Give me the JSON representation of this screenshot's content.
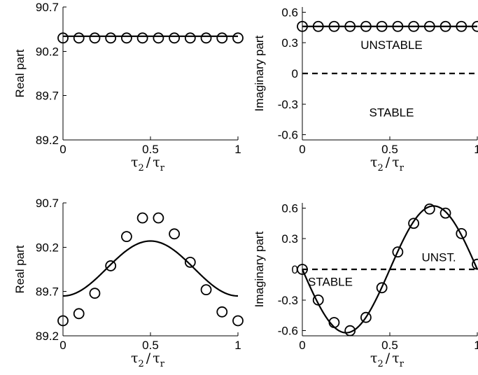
{
  "colors": {
    "line": "#000000",
    "background": "#ffffff"
  },
  "chart_data": [
    {
      "type": "line",
      "panel": "top-left",
      "ylabel": "Real part",
      "xlabel_main": "τ",
      "xlabel_sub1": "2",
      "xlabel_slash": "/",
      "xlabel_main2": "τ",
      "xlabel_sub2": "r",
      "xlim": [
        0,
        1
      ],
      "ylim": [
        89.2,
        90.7
      ],
      "xticks": [
        0,
        0.5,
        1
      ],
      "xtick_labels": [
        "0",
        "0.5",
        "1"
      ],
      "yticks": [
        89.2,
        89.7,
        90.2,
        90.7
      ],
      "ytick_labels": [
        "89.2",
        "89.7",
        "90.2",
        "90.7"
      ],
      "curve": {
        "kind": "constant",
        "value": 90.37
      },
      "markers": {
        "x": [
          0,
          0.0909,
          0.1818,
          0.2727,
          0.3636,
          0.4545,
          0.5455,
          0.6364,
          0.7273,
          0.8182,
          0.9091,
          1
        ],
        "y": [
          90.35,
          90.35,
          90.35,
          90.35,
          90.35,
          90.35,
          90.35,
          90.35,
          90.35,
          90.35,
          90.35,
          90.35
        ]
      },
      "reference_line": null,
      "annotations": []
    },
    {
      "type": "line",
      "panel": "top-right",
      "ylabel": "Imaginary part",
      "xlabel_main": "τ",
      "xlabel_sub1": "2",
      "xlabel_slash": "/",
      "xlabel_main2": "τ",
      "xlabel_sub2": "r",
      "xlim": [
        0,
        1
      ],
      "ylim": [
        -0.65,
        0.65
      ],
      "xticks": [
        0,
        0.5,
        1
      ],
      "xtick_labels": [
        "0",
        "0.5",
        "1"
      ],
      "yticks": [
        -0.6,
        -0.3,
        0,
        0.3,
        0.6
      ],
      "ytick_labels": [
        "-0.6",
        "-0.3",
        "0",
        "0.3",
        "0.6"
      ],
      "curve": {
        "kind": "constant",
        "value": 0.46
      },
      "markers": {
        "x": [
          0,
          0.0909,
          0.1818,
          0.2727,
          0.3636,
          0.4545,
          0.5455,
          0.6364,
          0.7273,
          0.8182,
          0.9091,
          1
        ],
        "y": [
          0.46,
          0.46,
          0.46,
          0.46,
          0.46,
          0.46,
          0.46,
          0.46,
          0.46,
          0.46,
          0.46,
          0.46
        ]
      },
      "reference_line": 0,
      "annotations": [
        {
          "text": "UNSTABLE",
          "x": 0.51,
          "y": 0.28
        },
        {
          "text": "STABLE",
          "x": 0.51,
          "y": -0.38
        }
      ]
    },
    {
      "type": "line",
      "panel": "bottom-left",
      "ylabel": "Real part",
      "xlabel_main": "τ",
      "xlabel_sub1": "2",
      "xlabel_slash": "/",
      "xlabel_main2": "τ",
      "xlabel_sub2": "r",
      "xlim": [
        0,
        1
      ],
      "ylim": [
        89.2,
        90.7
      ],
      "xticks": [
        0,
        0.5,
        1
      ],
      "xtick_labels": [
        "0",
        "0.5",
        "1"
      ],
      "yticks": [
        89.2,
        89.7,
        90.2,
        90.7
      ],
      "ytick_labels": [
        "89.2",
        "89.7",
        "90.2",
        "90.7"
      ],
      "curve": {
        "kind": "cosine",
        "mean": 89.96,
        "amp": 0.62,
        "period": 1,
        "phase": 0.5,
        "neg": true
      },
      "markers": {
        "x": [
          0,
          0.0909,
          0.1818,
          0.2727,
          0.3636,
          0.4545,
          0.5455,
          0.6364,
          0.7273,
          0.8182,
          0.9091,
          1
        ],
        "y": [
          89.37,
          89.45,
          89.68,
          89.99,
          90.32,
          90.53,
          90.53,
          90.35,
          90.03,
          89.72,
          89.47,
          89.37
        ]
      },
      "reference_line": null,
      "annotations": []
    },
    {
      "type": "line",
      "panel": "bottom-right",
      "ylabel": "Imaginary part",
      "xlabel_main": "τ",
      "xlabel_sub1": "2",
      "xlabel_slash": "/",
      "xlabel_main2": "τ",
      "xlabel_sub2": "r",
      "xlim": [
        0,
        1
      ],
      "ylim": [
        -0.65,
        0.65
      ],
      "xticks": [
        0,
        0.5,
        1
      ],
      "xtick_labels": [
        "0",
        "0.5",
        "1"
      ],
      "yticks": [
        -0.6,
        -0.3,
        0,
        0.3,
        0.6
      ],
      "ytick_labels": [
        "-0.6",
        "-0.3",
        "0",
        "0.3",
        "0.6"
      ],
      "curve": {
        "kind": "sine",
        "amp": 0.62,
        "period": 1,
        "neg": true
      },
      "markers": {
        "x": [
          0,
          0.0909,
          0.1818,
          0.2727,
          0.3636,
          0.4545,
          0.5455,
          0.6364,
          0.7273,
          0.8182,
          0.9091,
          1
        ],
        "y": [
          0.0,
          -0.3,
          -0.52,
          -0.6,
          -0.47,
          -0.18,
          0.17,
          0.45,
          0.59,
          0.55,
          0.35,
          0.05
        ]
      },
      "reference_line": 0,
      "annotations": [
        {
          "text": "UNST.",
          "x": 0.78,
          "y": 0.12
        },
        {
          "text": "STABLE",
          "x": 0.16,
          "y": -0.12
        }
      ]
    }
  ]
}
